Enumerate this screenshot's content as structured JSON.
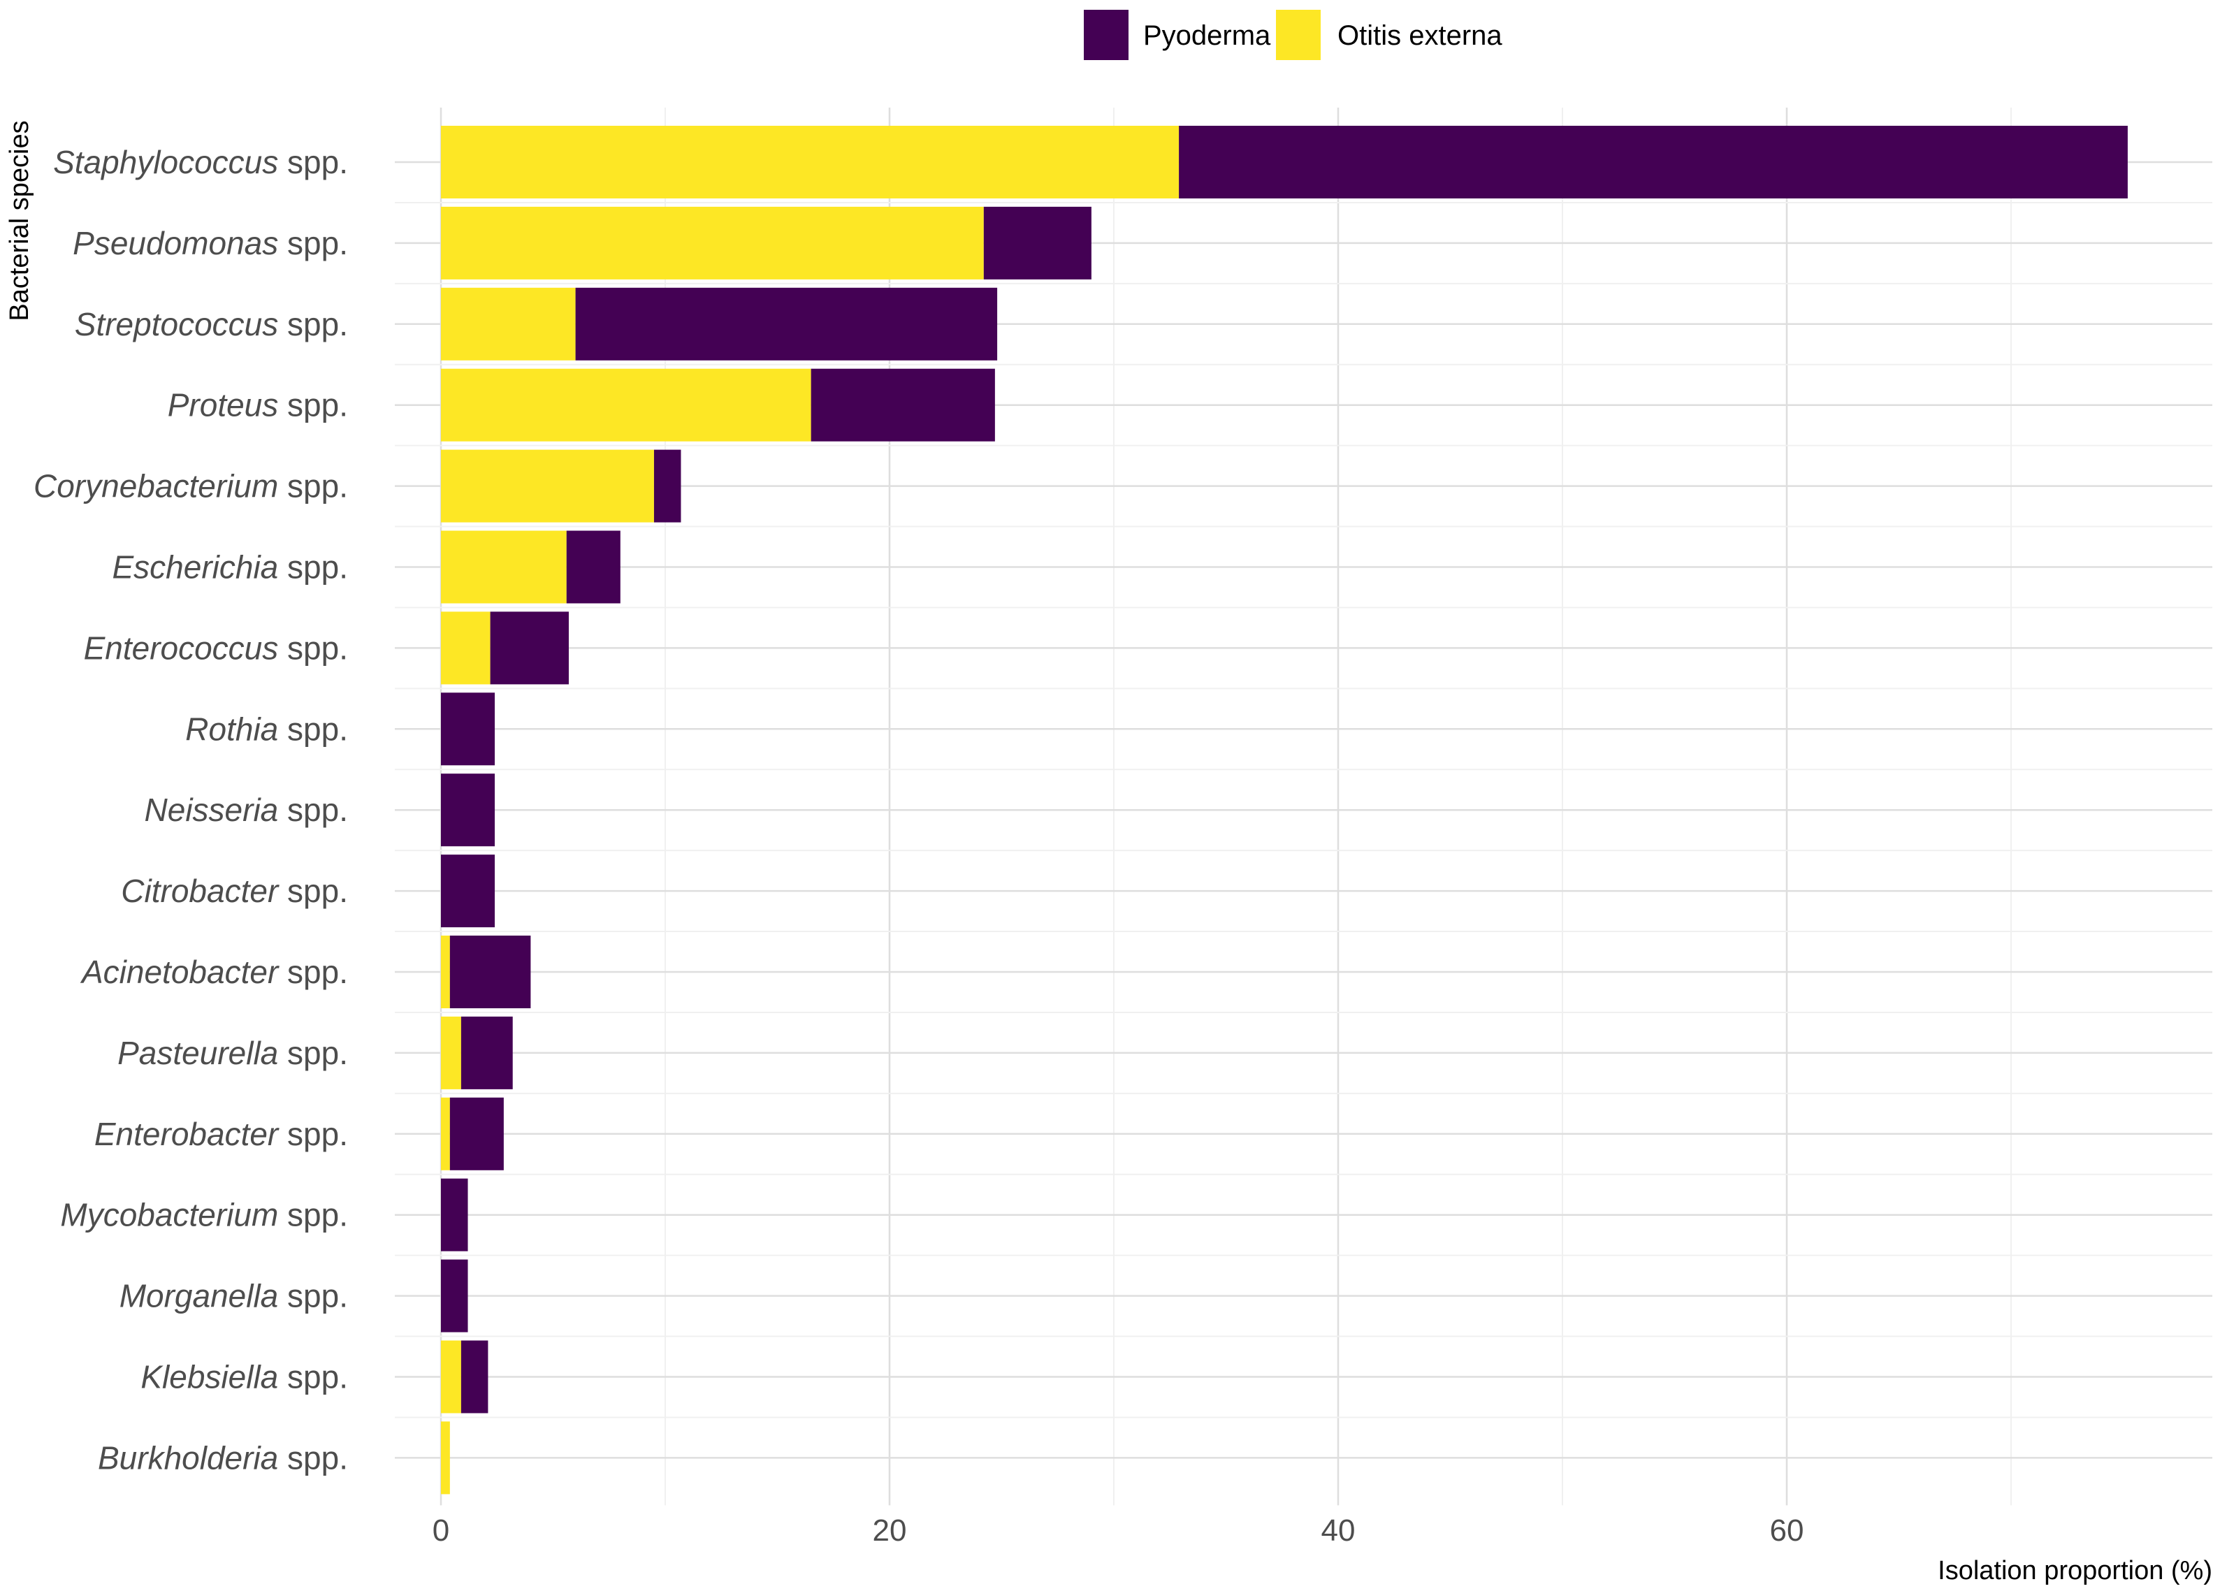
{
  "chart_data": {
    "type": "bar",
    "orientation": "horizontal",
    "stacked": true,
    "title": "",
    "xlabel": "Isolation proportion (%)",
    "ylabel": "Bacterial species",
    "xlim": [
      0,
      77
    ],
    "xticks": [
      0,
      20,
      40,
      60
    ],
    "grid": true,
    "legend_position": "top",
    "categories": [
      {
        "genus": "Staphylococcus",
        "suffix": "spp."
      },
      {
        "genus": "Pseudomonas",
        "suffix": "spp."
      },
      {
        "genus": "Streptococcus",
        "suffix": "spp."
      },
      {
        "genus": "Proteus",
        "suffix": "spp."
      },
      {
        "genus": "Corynebacterium",
        "suffix": "spp."
      },
      {
        "genus": "Escherichia",
        "suffix": "spp."
      },
      {
        "genus": "Enterococcus",
        "suffix": "spp."
      },
      {
        "genus": "Rothia",
        "suffix": "spp."
      },
      {
        "genus": "Neisseria",
        "suffix": "spp."
      },
      {
        "genus": "Citrobacter",
        "suffix": "spp."
      },
      {
        "genus": "Acinetobacter",
        "suffix": "spp."
      },
      {
        "genus": "Pasteurella",
        "suffix": "spp."
      },
      {
        "genus": "Enterobacter",
        "suffix": "spp."
      },
      {
        "genus": "Mycobacterium",
        "suffix": "spp."
      },
      {
        "genus": "Morganella",
        "suffix": "spp."
      },
      {
        "genus": "Klebsiella",
        "suffix": "spp."
      },
      {
        "genus": "Burkholderia",
        "suffix": "spp."
      }
    ],
    "series": [
      {
        "name": "Otitis externa",
        "color": "#FDE725",
        "values": [
          32.9,
          24.2,
          6.0,
          16.5,
          9.5,
          5.6,
          2.2,
          0,
          0,
          0,
          0.4,
          0.9,
          0.4,
          0,
          0,
          0.9,
          0.4
        ]
      },
      {
        "name": "Pyoderma",
        "color": "#440154",
        "values": [
          42.3,
          4.8,
          18.8,
          8.2,
          1.2,
          2.4,
          3.5,
          2.4,
          2.4,
          2.4,
          3.6,
          2.3,
          2.4,
          1.2,
          1.2,
          1.2,
          0
        ]
      }
    ],
    "legend": [
      {
        "name": "Pyoderma",
        "color": "#440154"
      },
      {
        "name": "Otitis externa",
        "color": "#FDE725"
      }
    ]
  }
}
